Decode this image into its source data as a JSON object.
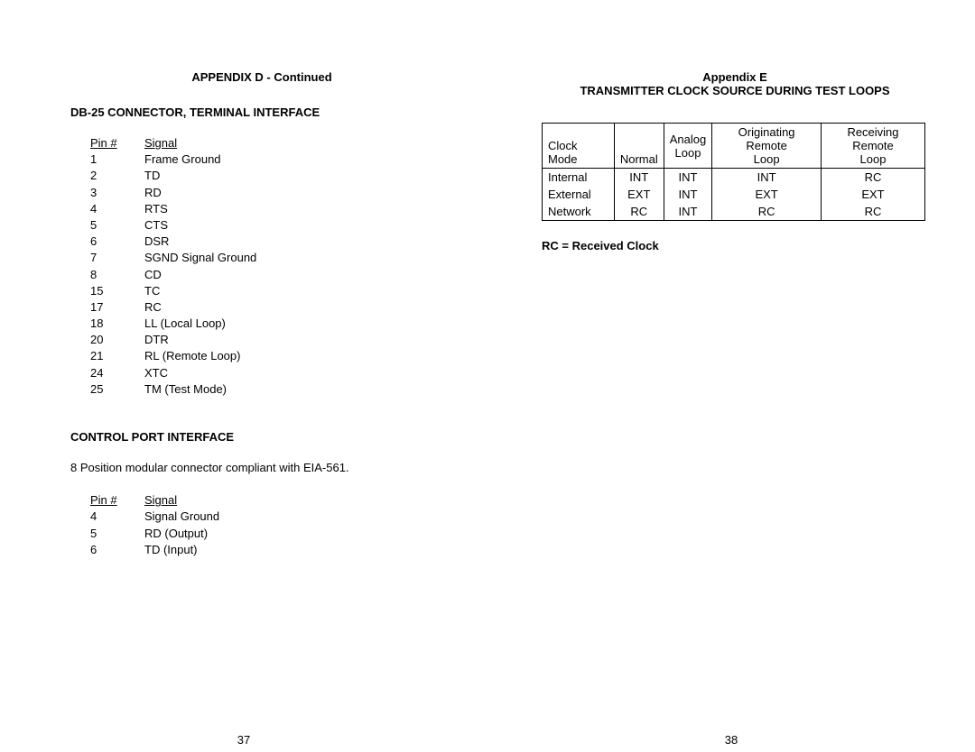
{
  "left": {
    "header": "APPENDIX D - Continued",
    "section1": "DB-25 CONNECTOR, TERMINAL INTERFACE",
    "pin_header_col1": "Pin #",
    "pin_header_col2": "Signal",
    "pins1": [
      {
        "n": "1",
        "s": "Frame Ground"
      },
      {
        "n": "2",
        "s": "TD"
      },
      {
        "n": "3",
        "s": "RD"
      },
      {
        "n": "4",
        "s": "RTS"
      },
      {
        "n": "5",
        "s": "CTS"
      },
      {
        "n": "6",
        "s": "DSR"
      },
      {
        "n": "7",
        "s": "SGND Signal Ground"
      },
      {
        "n": "8",
        "s": "CD"
      },
      {
        "n": "15",
        "s": "TC"
      },
      {
        "n": "17",
        "s": "RC"
      },
      {
        "n": "18",
        "s": "LL (Local Loop)"
      },
      {
        "n": "20",
        "s": "DTR"
      },
      {
        "n": "21",
        "s": "RL (Remote Loop)"
      },
      {
        "n": "24",
        "s": "XTC"
      },
      {
        "n": "25",
        "s": "TM (Test Mode)"
      }
    ],
    "section2": "CONTROL PORT INTERFACE",
    "body2": "8 Position modular connector compliant with EIA-561.",
    "pins2": [
      {
        "n": "4",
        "s": "Signal Ground"
      },
      {
        "n": "5",
        "s": "RD (Output)"
      },
      {
        "n": "6",
        "s": "TD  (Input)"
      }
    ],
    "pagenum": "37"
  },
  "right": {
    "header": "Appendix E",
    "subheader": "TRANSMITTER CLOCK SOURCE DURING TEST LOOPS",
    "table_headers": [
      "Clock Mode",
      "Normal",
      "Analog Loop",
      "Originating Remote Loop",
      "Receiving Remote Loop"
    ],
    "rows": [
      {
        "h": "Internal",
        "c": [
          "INT",
          "INT",
          "INT",
          "RC"
        ]
      },
      {
        "h": "External",
        "c": [
          "EXT",
          "INT",
          "EXT",
          "EXT"
        ]
      },
      {
        "h": "Network",
        "c": [
          "RC",
          "INT",
          "RC",
          "RC"
        ]
      }
    ],
    "note": "RC = Received Clock",
    "pagenum": "38"
  }
}
